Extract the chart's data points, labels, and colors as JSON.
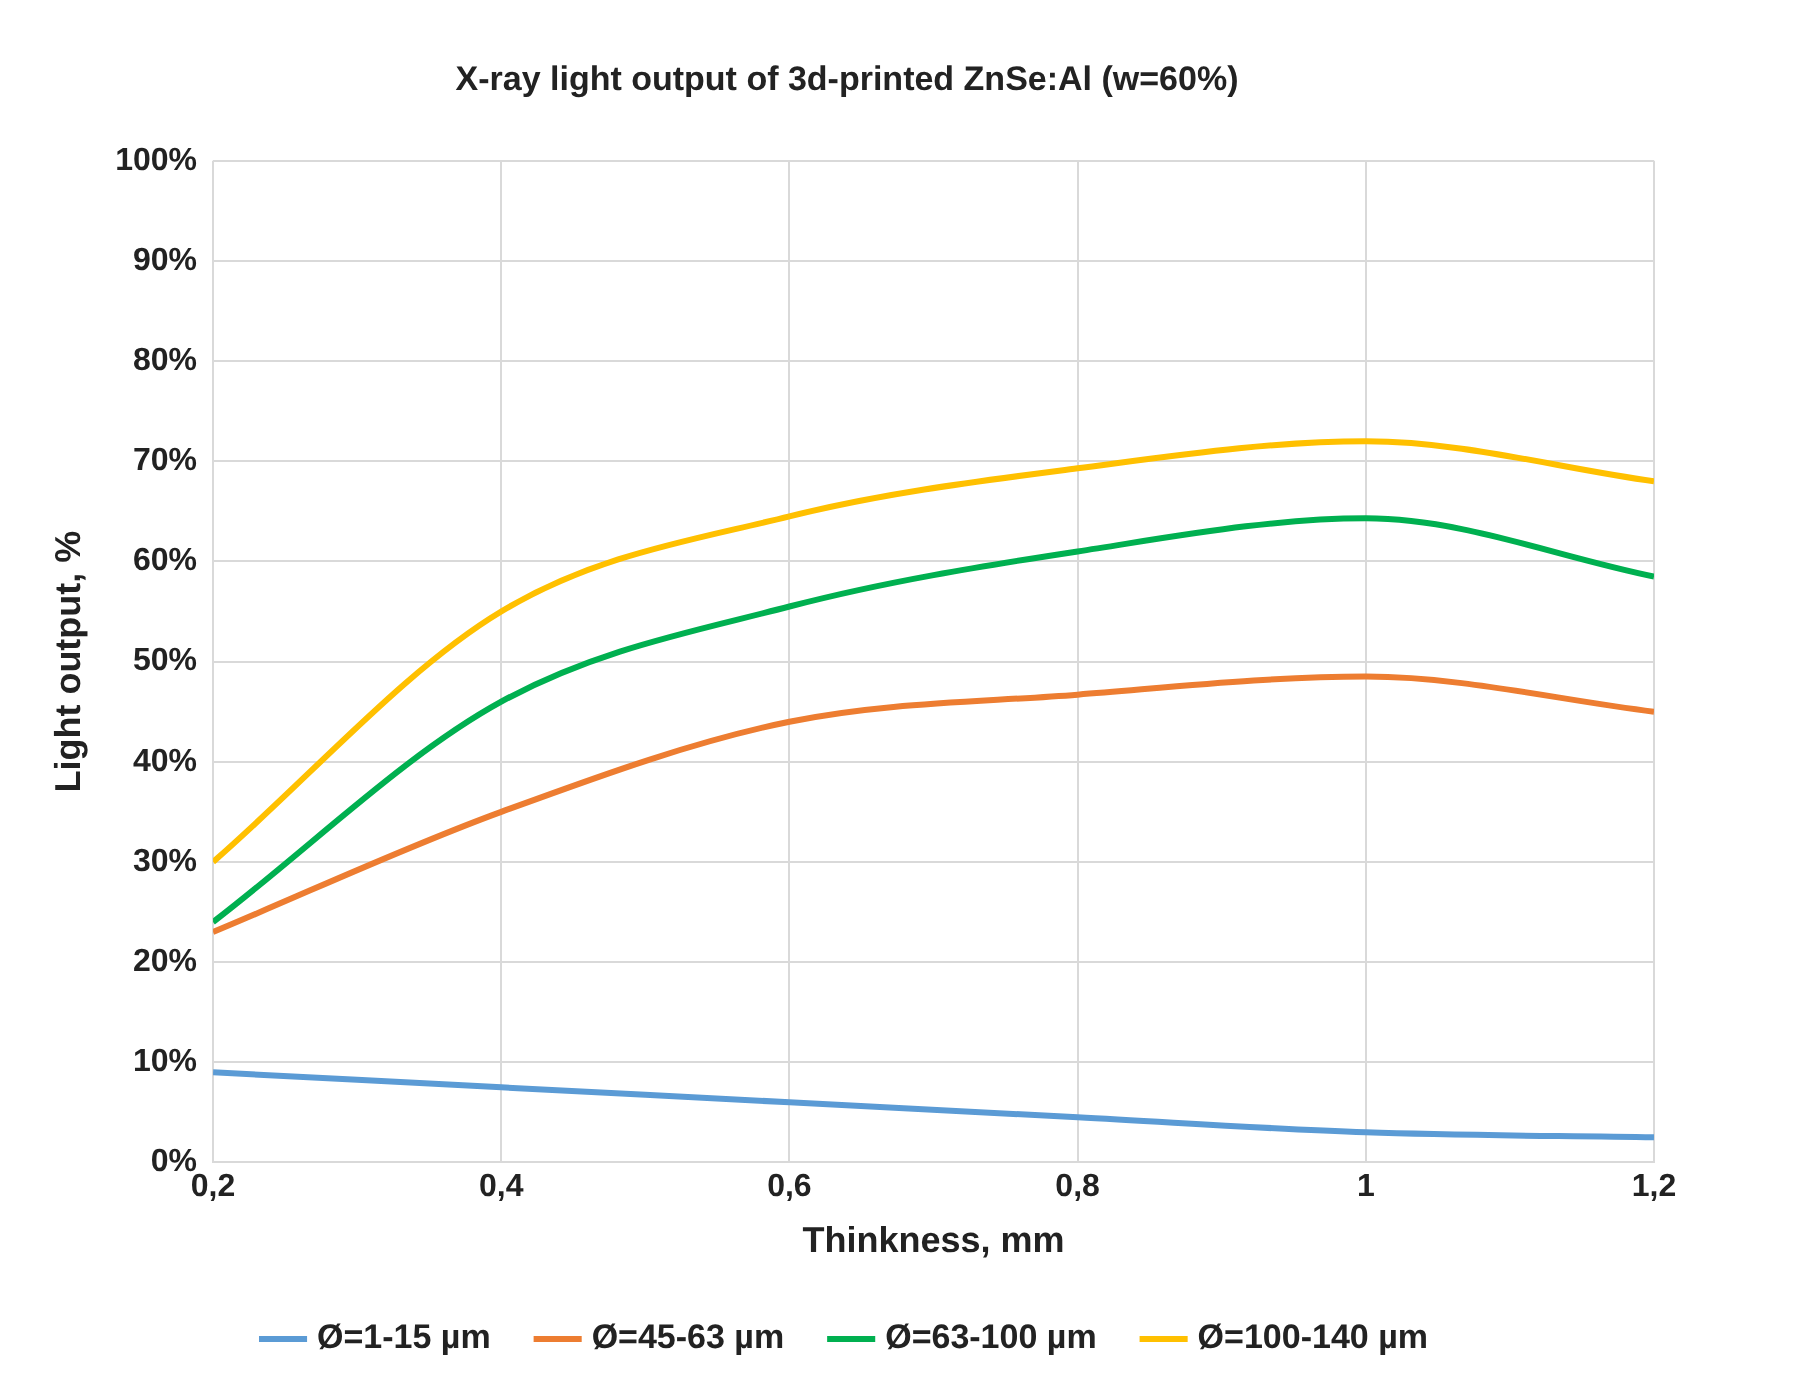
{
  "chart_data": {
    "type": "line",
    "title": "X-ray light output of 3d-printed ZnSe:Al (w=60%)",
    "xlabel": "Thinkness, mm",
    "ylabel": "Light output, %",
    "x": [
      0.2,
      0.4,
      0.6,
      0.8,
      1.0,
      1.2
    ],
    "series": [
      {
        "name": "Ø=1-15 µm",
        "color": "#5b9bd5",
        "values": [
          9,
          7.5,
          6,
          4.5,
          3,
          2.5
        ]
      },
      {
        "name": "Ø=45-63 µm",
        "color": "#ed7d31",
        "values": [
          23,
          35,
          44,
          46.7,
          48.5,
          45
        ]
      },
      {
        "name": "Ø=63-100 µm",
        "color": "#00b050",
        "values": [
          24,
          46,
          55.5,
          61,
          64.3,
          58.5
        ]
      },
      {
        "name": "Ø=100-140 µm",
        "color": "#ffc000",
        "values": [
          30,
          55,
          64.5,
          69.3,
          72,
          68
        ]
      }
    ],
    "xlim": [
      0.2,
      1.2
    ],
    "xticks": [
      {
        "value": 0.2,
        "label": "0,2"
      },
      {
        "value": 0.4,
        "label": "0,4"
      },
      {
        "value": 0.6,
        "label": "0,6"
      },
      {
        "value": 0.8,
        "label": "0,8"
      },
      {
        "value": 1,
        "label": "1"
      },
      {
        "value": 1.2,
        "label": "1,2"
      }
    ],
    "ylim": [
      0,
      100
    ],
    "yticks": [
      {
        "value": 0,
        "label": "0%"
      },
      {
        "value": 10,
        "label": "10%"
      },
      {
        "value": 20,
        "label": "20%"
      },
      {
        "value": 30,
        "label": "30%"
      },
      {
        "value": 40,
        "label": "40%"
      },
      {
        "value": 50,
        "label": "50%"
      },
      {
        "value": 60,
        "label": "60%"
      },
      {
        "value": 70,
        "label": "70%"
      },
      {
        "value": 80,
        "label": "80%"
      },
      {
        "value": 90,
        "label": "90%"
      },
      {
        "value": 100,
        "label": "100%"
      }
    ],
    "grid": true,
    "legend": "bottom",
    "marker": "none",
    "line_style": "solid"
  }
}
